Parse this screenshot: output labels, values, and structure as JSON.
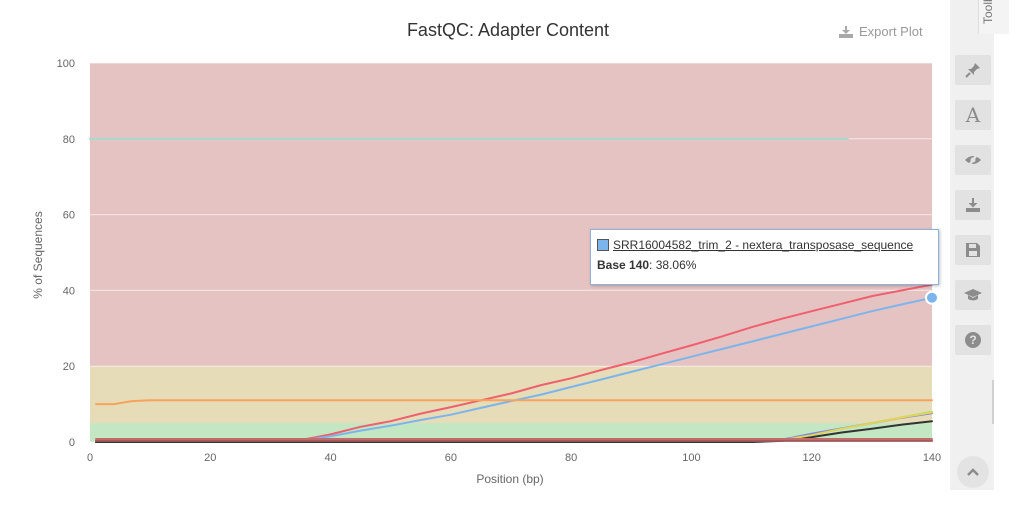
{
  "chart_data": {
    "type": "line",
    "title": "FastQC: Adapter Content",
    "xlabel": "Position (bp)",
    "ylabel": "% of Sequences",
    "xlim": [
      0,
      140
    ],
    "ylim": [
      0,
      100
    ],
    "xticks": [
      0,
      20,
      40,
      60,
      80,
      100,
      120,
      140
    ],
    "yticks": [
      0,
      20,
      40,
      60,
      80,
      100
    ],
    "grid": true,
    "legend": "none",
    "bands": [
      {
        "from": 0,
        "to": 5,
        "color": "#c3e6c3"
      },
      {
        "from": 5,
        "to": 20,
        "color": "#e6dcb8"
      },
      {
        "from": 20,
        "to": 100,
        "color": "#e6c3c3"
      }
    ],
    "series": [
      {
        "color": "#f05f6e",
        "x": [
          1,
          30,
          35,
          40,
          45,
          50,
          55,
          60,
          65,
          70,
          75,
          80,
          85,
          90,
          95,
          100,
          105,
          110,
          115,
          120,
          125,
          130,
          135,
          140
        ],
        "y": [
          0,
          0,
          0.5,
          2,
          4,
          5.5,
          7.5,
          9.2,
          11,
          12.8,
          15,
          16.8,
          19,
          21,
          23.3,
          25.5,
          27.8,
          30.3,
          32.5,
          34.5,
          36.5,
          38.5,
          40,
          41.5
        ]
      },
      {
        "color": "#7cb5ec",
        "x": [
          1,
          30,
          35,
          40,
          45,
          50,
          55,
          60,
          65,
          70,
          75,
          80,
          85,
          90,
          95,
          100,
          105,
          110,
          115,
          120,
          125,
          130,
          135,
          140
        ],
        "y": [
          0,
          0,
          0.3,
          1.5,
          3,
          4.3,
          5.8,
          7.2,
          9,
          10.8,
          12.5,
          14.5,
          16.5,
          18.5,
          20.5,
          22.5,
          24.5,
          26.5,
          28.5,
          30.5,
          32.5,
          34.5,
          36.3,
          38.06
        ]
      },
      {
        "color": "#f7a35c",
        "x": [
          1,
          4,
          7,
          10,
          140
        ],
        "y": [
          10,
          10,
          10.8,
          11,
          11
        ]
      },
      {
        "color": "#90ed7d",
        "x": [
          1,
          110,
          115,
          120,
          125,
          130,
          135,
          140
        ],
        "y": [
          0,
          0,
          0.5,
          2,
          3.5,
          5,
          6.5,
          8
        ]
      },
      {
        "color": "#8085e9",
        "x": [
          1,
          110,
          115,
          120,
          125,
          130,
          135,
          140
        ],
        "y": [
          0,
          0,
          0.6,
          2.2,
          3.6,
          5,
          6.4,
          7.6
        ]
      },
      {
        "color": "#333333",
        "x": [
          1,
          110,
          115,
          120,
          125,
          130,
          135,
          140
        ],
        "y": [
          0,
          0,
          0.3,
          1.3,
          2.5,
          3.5,
          4.6,
          5.5
        ]
      },
      {
        "color": "#e4d354",
        "x": [
          1,
          115,
          120,
          125,
          130,
          135,
          140
        ],
        "y": [
          0.5,
          0.5,
          1.8,
          3.5,
          5,
          6.5,
          7.8
        ]
      },
      {
        "color": "#a45a5a",
        "x": [
          1,
          140
        ],
        "y": [
          0.3,
          0.3
        ]
      },
      {
        "color": "#bf6c6c",
        "x": [
          1,
          140
        ],
        "y": [
          0.8,
          0.8
        ]
      },
      {
        "color": "#a3dbd0",
        "x": [
          0,
          126
        ],
        "y": [
          80,
          80
        ]
      }
    ],
    "tooltip": {
      "series_name": "SRR16004582_trim_2 - nextera_transposase_sequence",
      "point_label": "Base 140",
      "point_value": ": 38.06%",
      "x": 140,
      "y": 38.06
    }
  },
  "toolbar": {
    "export_label": "Export Plot",
    "toolbox_label": "Toolbox",
    "buttons": [
      "pin-icon",
      "text-icon",
      "hide-icon",
      "download-icon",
      "save-icon",
      "graduation-cap-icon",
      "help-icon"
    ]
  }
}
